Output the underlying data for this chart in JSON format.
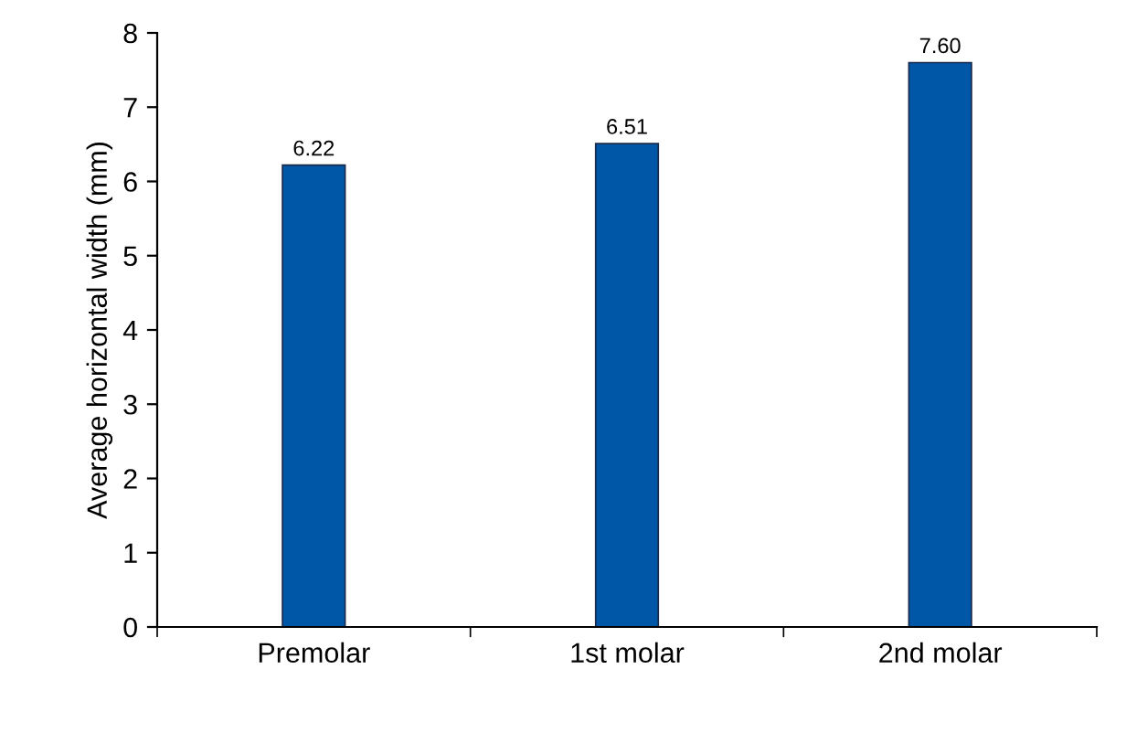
{
  "chart_data": {
    "type": "bar",
    "ylabel": "Average horizontal width (mm)",
    "categories": [
      "Premolar",
      "1st molar",
      "2nd molar"
    ],
    "values": [
      6.22,
      6.51,
      7.6
    ],
    "value_labels": [
      "6.22",
      "6.51",
      "7.60"
    ],
    "color": "#0057a8",
    "ylim": [
      0,
      8
    ],
    "yticks": [
      0,
      1,
      2,
      3,
      4,
      5,
      6,
      7,
      8
    ],
    "grid": false
  }
}
